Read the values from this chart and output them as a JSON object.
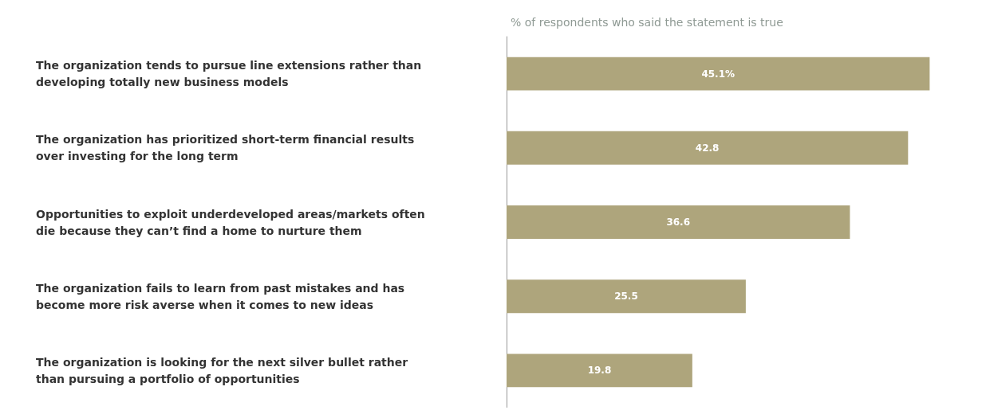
{
  "chart_data": {
    "type": "bar",
    "orientation": "horizontal",
    "title": "% of respondents who said the statement is true",
    "categories": [
      "The organization tends to pursue line extensions rather than developing totally new business models",
      "The organization has prioritized short-term financial results over investing for the long term",
      "Opportunities to exploit underdeveloped areas/markets often die because they can’t find a home to nurture them",
      "The organization fails to learn from past mistakes and has become more risk averse when it comes to new ideas",
      "The organization is looking for the next silver bullet rather than pursuing a portfolio of opportunities"
    ],
    "values": [
      45.1,
      42.8,
      36.6,
      25.5,
      19.8
    ],
    "value_labels": [
      "45.1%",
      "42.8",
      "36.6",
      "25.5",
      "19.8"
    ],
    "color": "#aea57c"
  }
}
